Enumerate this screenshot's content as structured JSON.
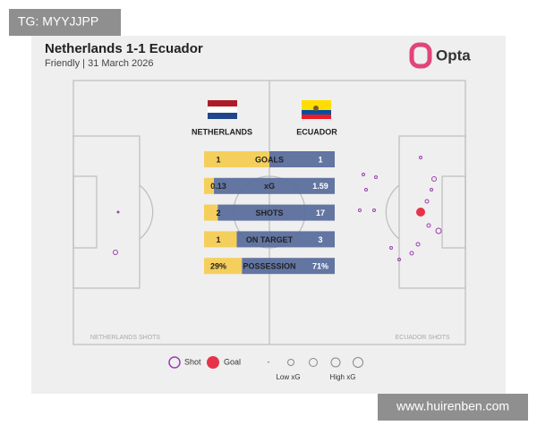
{
  "watermark": "TG: MYYJJPP",
  "site": "www.huirenben.com",
  "header": {
    "title": "Netherlands 1-1 Ecuador",
    "subtitle": "Friendly | 31 March 2026",
    "brand": "Opta"
  },
  "teams": [
    {
      "name": "NETHERLANDS",
      "shots_label": "NETHERLANDS SHOTS"
    },
    {
      "name": "ECUADOR",
      "shots_label": "ECUADOR SHOTS"
    }
  ],
  "stats": [
    {
      "label": "GOALS",
      "home": 1,
      "away": 1
    },
    {
      "label": "xG",
      "home": 0.13,
      "away": 1.59
    },
    {
      "label": "SHOTS",
      "home": 2,
      "away": 17
    },
    {
      "label": "ON TARGET",
      "home": 1,
      "away": 3
    },
    {
      "label": "POSSESSION",
      "home": {
        "value": 29,
        "label": "29%"
      },
      "away": {
        "value": 71,
        "label": "71%"
      }
    }
  ],
  "legend": {
    "shot": "Shot",
    "goal": "Goal",
    "dash": "-",
    "low": "Low xG",
    "high": "High xG"
  }
}
